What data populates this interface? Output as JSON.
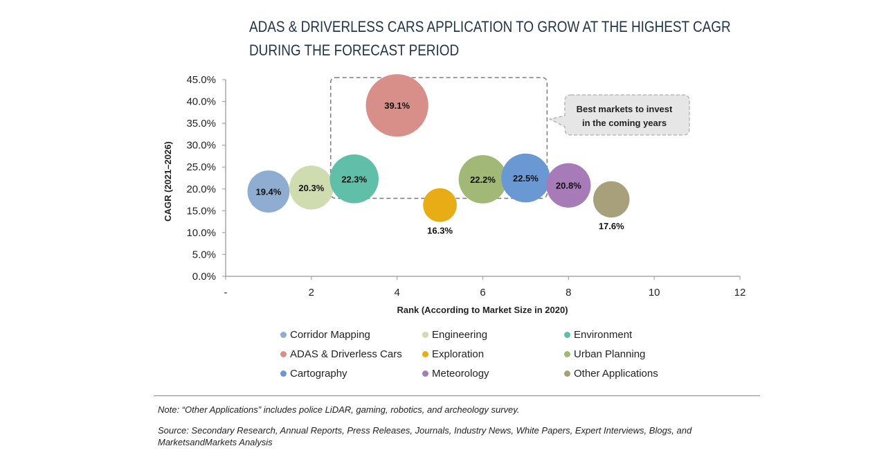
{
  "chart_data": {
    "type": "scatter",
    "subtype": "bubble",
    "title_lines": [
      "ADAS & DRIVERLESS CARS APPLICATION TO GROW AT THE HIGHEST CAGR",
      "DURING THE FORECAST PERIOD"
    ],
    "xlabel": "Rank (According to Market Size in 2020)",
    "ylabel": "CAGR (2021–2026)",
    "xlim": [
      0,
      12
    ],
    "ylim": [
      0,
      45
    ],
    "x_ticks": [
      {
        "value": 0,
        "label": "-"
      },
      {
        "value": 2,
        "label": "2"
      },
      {
        "value": 4,
        "label": "4"
      },
      {
        "value": 6,
        "label": "6"
      },
      {
        "value": 8,
        "label": "8"
      },
      {
        "value": 10,
        "label": "10"
      },
      {
        "value": 12,
        "label": "12"
      }
    ],
    "y_ticks": [
      {
        "value": 0,
        "label": "0.0%"
      },
      {
        "value": 5,
        "label": "5.0%"
      },
      {
        "value": 10,
        "label": "10.0%"
      },
      {
        "value": 15,
        "label": "15.0%"
      },
      {
        "value": 20,
        "label": "20.0%"
      },
      {
        "value": 25,
        "label": "25.0%"
      },
      {
        "value": 30,
        "label": "30.0%"
      },
      {
        "value": 35,
        "label": "35.0%"
      },
      {
        "value": 40,
        "label": "40.0%"
      },
      {
        "value": 45,
        "label": "45.0%"
      }
    ],
    "grid": false,
    "legend_position": "bottom",
    "series": [
      {
        "name": "Corridor Mapping",
        "x": 1,
        "y": 19.4,
        "size": 2,
        "label": "19.4%",
        "label_position": "center",
        "color": "#8eadd0"
      },
      {
        "name": "Engineering",
        "x": 2,
        "y": 20.3,
        "size": 2.3,
        "label": "20.3%",
        "label_position": "center",
        "color": "#cfdcb0"
      },
      {
        "name": "Environment",
        "x": 3,
        "y": 22.3,
        "size": 3.2,
        "label": "22.3%",
        "label_position": "center",
        "color": "#5fbfa8"
      },
      {
        "name": "ADAS & Driverless Cars",
        "x": 4,
        "y": 39.1,
        "size": 6.5,
        "label": "39.1%",
        "label_position": "center",
        "color": "#d88f8a"
      },
      {
        "name": "Exploration",
        "x": 5,
        "y": 16.3,
        "size": 0.9,
        "label": "16.3%",
        "label_position": "below",
        "color": "#e8ad14"
      },
      {
        "name": "Urban Planning",
        "x": 6,
        "y": 22.2,
        "size": 3.1,
        "label": "22.2%",
        "label_position": "center",
        "color": "#a2b877"
      },
      {
        "name": "Cartography",
        "x": 7,
        "y": 22.5,
        "size": 3.2,
        "label": "22.5%",
        "label_position": "center",
        "color": "#6a98d2"
      },
      {
        "name": "Meteorology",
        "x": 8,
        "y": 20.8,
        "size": 2.4,
        "label": "20.8%",
        "label_position": "center",
        "color": "#a77bb8"
      },
      {
        "name": "Other Applications",
        "x": 9,
        "y": 17.6,
        "size": 1.2,
        "label": "17.6%",
        "label_position": "below",
        "color": "#a8a07a"
      }
    ],
    "annotations": [
      {
        "type": "dashed-box",
        "x_range": [
          2.45,
          7.5
        ],
        "y_range": [
          18,
          45
        ],
        "text_lines": [
          "Best markets to invest",
          "in the coming years"
        ]
      }
    ]
  },
  "footer": {
    "note": "Note: “Other Applications” includes police LiDAR, gaming, robotics, and archeology survey.",
    "source": "Source: Secondary Research, Annual Reports, Press Releases, Journals, Industry News, White Papers, Expert Interviews, Blogs, and MarketsandMarkets Analysis"
  }
}
